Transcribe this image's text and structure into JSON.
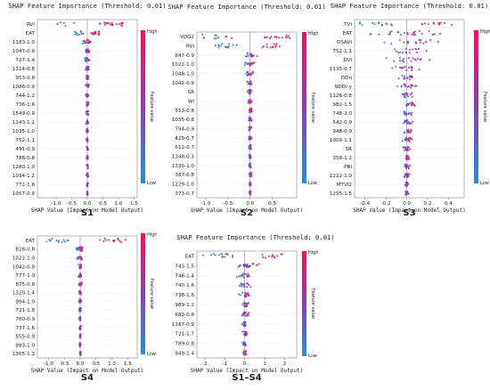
{
  "colors": {
    "low": "#1e8fe6",
    "high": "#ff0a5a",
    "zero_line": "#999999",
    "row_grid": "#cccccc"
  },
  "chart_data": [
    {
      "type": "scatter",
      "subtype": "shap-beeswarm",
      "panel_label": "S1",
      "title": "SHAP Feature Importance (Threshold: 0.01)",
      "xlabel": "SHAP Value (Impact on Model Output)",
      "colorbar": {
        "label": "Feature value",
        "high": "High",
        "low": "Low"
      },
      "xlim": [
        -1.6,
        1.6
      ],
      "xticks": [
        -1.0,
        -0.5,
        0.0,
        0.5,
        1.0,
        1.5
      ],
      "xtick_labels": [
        "-1.0",
        "-0.5",
        "0.0",
        "0.5",
        "1.0",
        "1.5"
      ],
      "features": [
        "RVI",
        "EAT",
        "1183-1.0",
        "1047-0.9",
        "727-1.4",
        "1314-0.8",
        "953-0.8",
        "1088-0.9",
        "744-1.2",
        "736-1.6",
        "1549-0.9",
        "1143-1.2",
        "1035-1.0",
        "752-1.1",
        "491-0.9",
        "788-0.8",
        "1280-1.0",
        "1034-1.2",
        "772-1.6",
        "1057-0.9"
      ],
      "ranges": [
        [
          -1.2,
          1.2
        ],
        [
          -0.4,
          0.4
        ],
        [
          -0.15,
          0.1
        ],
        [
          -0.08,
          0.08
        ],
        [
          -0.08,
          0.06
        ],
        [
          -0.06,
          0.06
        ],
        [
          -0.05,
          0.05
        ],
        [
          -0.05,
          0.05
        ],
        [
          -0.05,
          0.04
        ],
        [
          -0.04,
          0.05
        ],
        [
          -0.04,
          0.05
        ],
        [
          -0.05,
          0.04
        ],
        [
          -0.04,
          0.03
        ],
        [
          -0.04,
          0.03
        ],
        [
          -0.03,
          0.03
        ],
        [
          -0.03,
          0.03
        ],
        [
          -0.03,
          0.03
        ],
        [
          -0.03,
          0.03
        ],
        [
          -0.02,
          0.03
        ],
        [
          -0.02,
          0.02
        ]
      ]
    },
    {
      "type": "scatter",
      "subtype": "shap-beeswarm",
      "panel_label": "S2",
      "title": "SHAP Feature Importance (Threshold: 0.01)",
      "xlabel": "SHAP Value (Impact on Model Output)",
      "colorbar": {
        "label": "Feature value",
        "high": "High",
        "low": "Low"
      },
      "xlim": [
        -1.2,
        1.05
      ],
      "xticks": [
        -1.0,
        -0.5,
        0.0,
        0.5
      ],
      "xtick_labels": [
        "-1.0",
        "-0.5",
        "0.0",
        "0.5"
      ],
      "features": [
        "VOG2",
        "RVI",
        "847-0.9",
        "1022-1.0",
        "1048-1.0",
        "1042-0.9",
        "SR",
        "WI",
        "553-0.8",
        "1035-0.8",
        "794-0.9",
        "420-0.7",
        "612-0.7",
        "1348-0.3",
        "1330-1.0",
        "387-0.8",
        "1229-1.0",
        "373-0.7"
      ],
      "ranges": [
        [
          -1.1,
          0.95
        ],
        [
          -0.8,
          0.7
        ],
        [
          -0.2,
          0.2
        ],
        [
          -0.12,
          0.1
        ],
        [
          -0.1,
          0.08
        ],
        [
          -0.08,
          0.06
        ],
        [
          -0.06,
          0.05
        ],
        [
          -0.06,
          0.05
        ],
        [
          -0.05,
          0.05
        ],
        [
          -0.04,
          0.05
        ],
        [
          -0.04,
          0.04
        ],
        [
          -0.04,
          0.03
        ],
        [
          -0.03,
          0.03
        ],
        [
          -0.03,
          0.03
        ],
        [
          -0.03,
          0.03
        ],
        [
          -0.02,
          0.03
        ],
        [
          -0.02,
          0.02
        ],
        [
          -0.02,
          0.02
        ]
      ]
    },
    {
      "type": "scatter",
      "subtype": "shap-beeswarm",
      "panel_label": "S3",
      "title": "SHAP Feature Importance (Threshold: 0.01)",
      "xlabel": "SHAP Value (Impact on Model Output)",
      "colorbar": {
        "label": "Feature value",
        "high": "High",
        "low": "Low"
      },
      "xlim": [
        -0.5,
        0.55
      ],
      "xticks": [
        -0.4,
        -0.2,
        0.0,
        0.2,
        0.4
      ],
      "xtick_labels": [
        "-0.4",
        "-0.2",
        "0.0",
        "0.2",
        "0.4"
      ],
      "features": [
        "TVI",
        "EAT",
        "OSAVI",
        "752-1.1",
        "DVI",
        "1135-0.7",
        "DDn",
        "NDDr.y",
        "1126-0.8",
        "982-1.5",
        "748-2.0",
        "542-0.9",
        "948-0.9",
        "1009-1.1",
        "SR",
        "358-1.2",
        "PRI",
        "1222-1.0",
        "MTVI2",
        "1295-1.5"
      ],
      "ranges": [
        [
          -0.45,
          0.45
        ],
        [
          -0.35,
          0.35
        ],
        [
          -0.3,
          0.3
        ],
        [
          -0.28,
          0.26
        ],
        [
          -0.22,
          0.22
        ],
        [
          -0.15,
          0.12
        ],
        [
          -0.1,
          0.12
        ],
        [
          -0.12,
          0.1
        ],
        [
          -0.06,
          0.06
        ],
        [
          -0.05,
          0.1
        ],
        [
          -0.05,
          0.08
        ],
        [
          -0.05,
          0.06
        ],
        [
          -0.04,
          0.05
        ],
        [
          -0.04,
          0.05
        ],
        [
          -0.04,
          0.04
        ],
        [
          -0.03,
          0.03
        ],
        [
          -0.03,
          0.03
        ],
        [
          -0.03,
          0.03
        ],
        [
          -0.02,
          0.02
        ],
        [
          -0.02,
          0.02
        ]
      ]
    },
    {
      "type": "scatter",
      "subtype": "shap-beeswarm",
      "panel_label": "S4",
      "title": "",
      "xlabel": "SHAP Value (Impact on Model Output)",
      "colorbar": {
        "label": "Feature value",
        "high": "High",
        "low": "Low"
      },
      "xlim": [
        -1.35,
        1.8
      ],
      "xticks": [
        -1.0,
        -0.5,
        0.0,
        0.5,
        1.0,
        1.5
      ],
      "xtick_labels": [
        "-1.0",
        "-0.5",
        "0.0",
        "0.5",
        "1.0",
        "1.5"
      ],
      "features": [
        "EAT",
        "828-0.8",
        "1022-1.0",
        "1042-0.9",
        "777-1.0",
        "875-0.8",
        "1320-1.4",
        "994-1.0",
        "721-1.8",
        "780-0.9",
        "737-1.6",
        "555-0.9",
        "993-1.0",
        "1305-1.3"
      ],
      "ranges": [
        [
          -1.2,
          1.6
        ],
        [
          -0.12,
          0.1
        ],
        [
          -0.1,
          0.08
        ],
        [
          -0.08,
          0.07
        ],
        [
          -0.07,
          0.06
        ],
        [
          -0.06,
          0.05
        ],
        [
          -0.05,
          0.05
        ],
        [
          -0.05,
          0.04
        ],
        [
          -0.04,
          0.04
        ],
        [
          -0.04,
          0.03
        ],
        [
          -0.03,
          0.03
        ],
        [
          -0.03,
          0.03
        ],
        [
          -0.03,
          0.02
        ],
        [
          -0.02,
          0.02
        ]
      ]
    },
    {
      "type": "scatter",
      "subtype": "shap-beeswarm",
      "panel_label": "S1–S4",
      "title": "SHAP Feature Importance (Threshold: 0.01)",
      "xlabel": "SHAP Value (Impact on Model Output)",
      "colorbar": {
        "label": "Feature value",
        "high": "High",
        "low": "Low"
      },
      "xlim": [
        -2.4,
        2.6
      ],
      "xticks": [
        -2,
        -1,
        0,
        1,
        2
      ],
      "xtick_labels": [
        "-2",
        "-1",
        "0",
        "1",
        "2"
      ],
      "features": [
        "EAT",
        "743-1.5",
        "746-1.4",
        "740-1.6",
        "738-1.6",
        "989-1.2",
        "683-0.8",
        "1187-0.9",
        "721-1.7",
        "789-0.8",
        "949-1.4"
      ],
      "ranges": [
        [
          -2.1,
          2.3
        ],
        [
          -0.5,
          0.7
        ],
        [
          -0.4,
          0.4
        ],
        [
          -0.3,
          0.35
        ],
        [
          -0.3,
          0.3
        ],
        [
          -0.2,
          0.25
        ],
        [
          -0.15,
          0.2
        ],
        [
          -0.15,
          0.15
        ],
        [
          -0.12,
          0.15
        ],
        [
          -0.1,
          0.1
        ],
        [
          -0.1,
          0.08
        ]
      ]
    }
  ]
}
